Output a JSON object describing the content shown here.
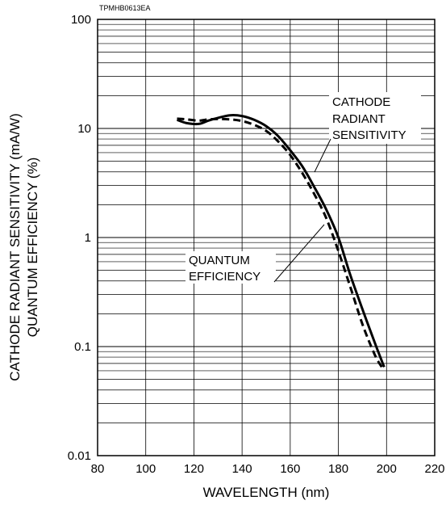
{
  "figure_code": "TPMHB0613EA",
  "chart_data": {
    "type": "line",
    "xlabel": "WAVELENGTH (nm)",
    "ylabel_lines": [
      "CATHODE RADIANT SENSITIVITY (mA/W)",
      "QUANTUM EFFICIENCY (%)"
    ],
    "xlim": [
      80,
      220
    ],
    "ylim": [
      0.01,
      100
    ],
    "y_scale": "log",
    "grid": true,
    "x_ticks": [
      "80",
      "100",
      "120",
      "140",
      "160",
      "180",
      "200",
      "220"
    ],
    "y_ticks": [
      "0.01",
      "0.1",
      "1",
      "10",
      "100"
    ],
    "series": [
      {
        "name": "CATHODE RADIANT SENSITIVITY",
        "label_lines": [
          "CATHODE",
          "RADIANT",
          "SENSITIVITY"
        ],
        "line_style": "solid",
        "color": "#000000",
        "x": [
          113,
          117,
          122,
          126,
          130,
          135,
          140,
          145,
          150,
          155,
          160,
          165,
          170,
          175,
          180,
          185,
          190,
          195,
          199
        ],
        "y": [
          12.0,
          11.2,
          11.0,
          11.8,
          12.5,
          13.2,
          13.0,
          12.0,
          10.5,
          8.5,
          6.3,
          4.5,
          2.9,
          1.8,
          1.0,
          0.45,
          0.22,
          0.11,
          0.065
        ]
      },
      {
        "name": "QUANTUM EFFICIENCY",
        "label_lines": [
          "QUANTUM",
          "EFFICIENCY"
        ],
        "line_style": "dashed",
        "color": "#000000",
        "x": [
          113,
          117,
          122,
          126,
          130,
          135,
          140,
          145,
          150,
          155,
          160,
          165,
          170,
          175,
          180,
          185,
          190,
          195,
          198
        ],
        "y": [
          12.3,
          12.1,
          11.8,
          12.1,
          12.2,
          12.1,
          11.7,
          10.8,
          9.5,
          7.6,
          5.7,
          3.9,
          2.5,
          1.5,
          0.75,
          0.35,
          0.16,
          0.085,
          0.065
        ]
      }
    ]
  }
}
